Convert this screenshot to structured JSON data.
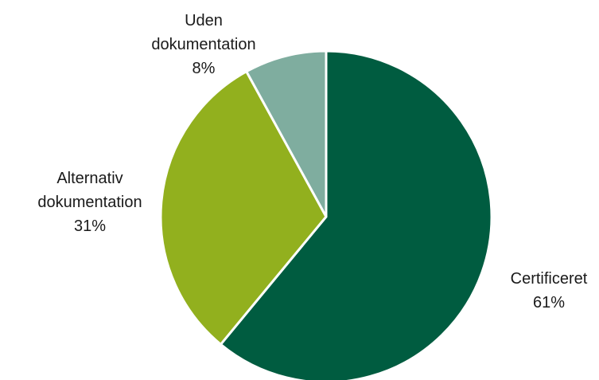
{
  "chart_data": {
    "type": "pie",
    "title": "",
    "start_angle_deg": 0,
    "direction": "clockwise",
    "slices": [
      {
        "name": "Certificeret",
        "label_lines": [
          "Certificeret"
        ],
        "value": 61,
        "value_label": "61%",
        "color": "#005C40"
      },
      {
        "name": "Alternativ dokumentation",
        "label_lines": [
          "Alternativ",
          "dokumentation"
        ],
        "value": 31,
        "value_label": "31%",
        "color": "#92B01E"
      },
      {
        "name": "Uden dokumentation",
        "label_lines": [
          "Uden",
          "dokumentation"
        ],
        "value": 8,
        "value_label": "8%",
        "color": "#7FAD9F"
      }
    ],
    "slice_border_color": "#ffffff"
  }
}
